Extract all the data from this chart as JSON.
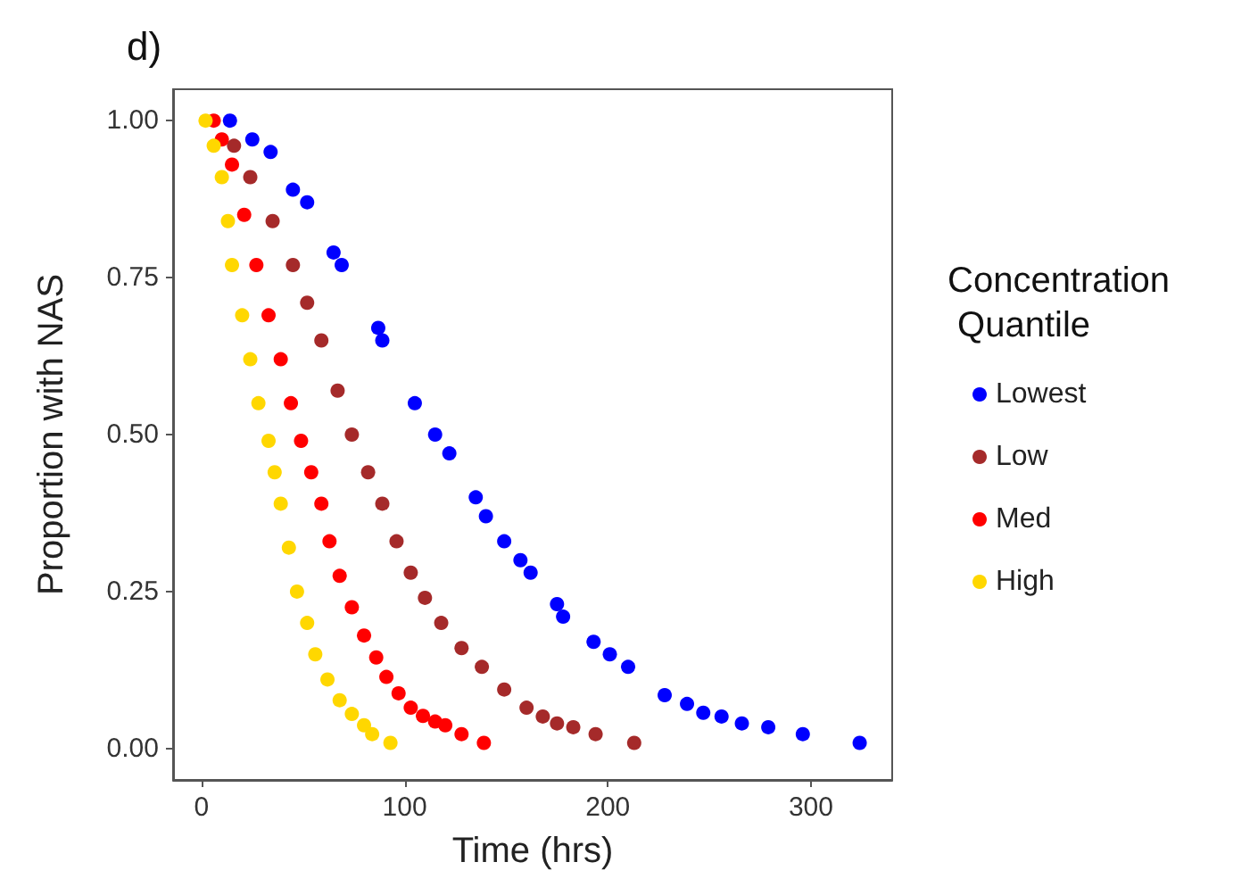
{
  "chart_data": {
    "type": "scatter",
    "title": "d)",
    "xlabel": "Time (hrs)",
    "ylabel": "Proportion with NAS",
    "legend_title": "Concentration\n Quantile",
    "legend": "right",
    "grid": false,
    "marker": "circle",
    "xlim": [
      -14,
      340
    ],
    "xticks": [
      0,
      100,
      200,
      300
    ],
    "ylim": [
      -0.05,
      1.05
    ],
    "yticks": [
      {
        "value": 0,
        "label": "0.00"
      },
      {
        "value": 0.25,
        "label": "0.25"
      },
      {
        "value": 0.5,
        "label": "0.50"
      },
      {
        "value": 0.75,
        "label": "0.75"
      },
      {
        "value": 1,
        "label": "1.00"
      }
    ],
    "series": [
      {
        "name": "Lowest",
        "color": "#0000ff",
        "x": [
          14,
          25,
          34,
          45,
          52,
          65,
          69,
          87,
          89,
          105,
          115,
          122,
          135,
          140,
          149,
          157,
          162,
          175,
          178,
          193,
          201,
          210,
          228,
          239,
          247,
          256,
          266,
          279,
          296,
          324
        ],
        "values": [
          1.0,
          0.97,
          0.95,
          0.89,
          0.87,
          0.79,
          0.77,
          0.67,
          0.65,
          0.55,
          0.5,
          0.47,
          0.4,
          0.37,
          0.33,
          0.3,
          0.28,
          0.23,
          0.21,
          0.17,
          0.15,
          0.13,
          0.085,
          0.071,
          0.057,
          0.051,
          0.04,
          0.034,
          0.023,
          0.009
        ]
      },
      {
        "name": "Low",
        "color": "#a52a2a",
        "x": [
          16,
          24,
          35,
          45,
          52,
          59,
          67,
          74,
          82,
          89,
          96,
          103,
          110,
          118,
          128,
          138,
          149,
          160,
          168,
          175,
          183,
          194,
          213
        ],
        "values": [
          0.96,
          0.91,
          0.84,
          0.77,
          0.71,
          0.65,
          0.57,
          0.5,
          0.44,
          0.39,
          0.33,
          0.28,
          0.24,
          0.2,
          0.16,
          0.13,
          0.094,
          0.065,
          0.051,
          0.04,
          0.034,
          0.023,
          0.009
        ]
      },
      {
        "name": "Med",
        "color": "#ff0000",
        "x": [
          6,
          10,
          15,
          21,
          27,
          33,
          39,
          44,
          49,
          54,
          59,
          63,
          68,
          74,
          80,
          86,
          91,
          97,
          103,
          109,
          115,
          120,
          128,
          139
        ],
        "values": [
          1.0,
          0.97,
          0.93,
          0.85,
          0.77,
          0.69,
          0.62,
          0.55,
          0.49,
          0.44,
          0.39,
          0.33,
          0.275,
          0.225,
          0.18,
          0.145,
          0.114,
          0.088,
          0.065,
          0.052,
          0.043,
          0.037,
          0.023,
          0.009
        ]
      },
      {
        "name": "High",
        "color": "#ffd700",
        "x": [
          2,
          6,
          10,
          13,
          15,
          20,
          24,
          28,
          33,
          36,
          39,
          43,
          47,
          52,
          56,
          62,
          68,
          74,
          80,
          84,
          93
        ],
        "values": [
          1.0,
          0.96,
          0.91,
          0.84,
          0.77,
          0.69,
          0.62,
          0.55,
          0.49,
          0.44,
          0.39,
          0.32,
          0.25,
          0.2,
          0.15,
          0.11,
          0.077,
          0.055,
          0.037,
          0.023,
          0.009
        ]
      }
    ]
  }
}
